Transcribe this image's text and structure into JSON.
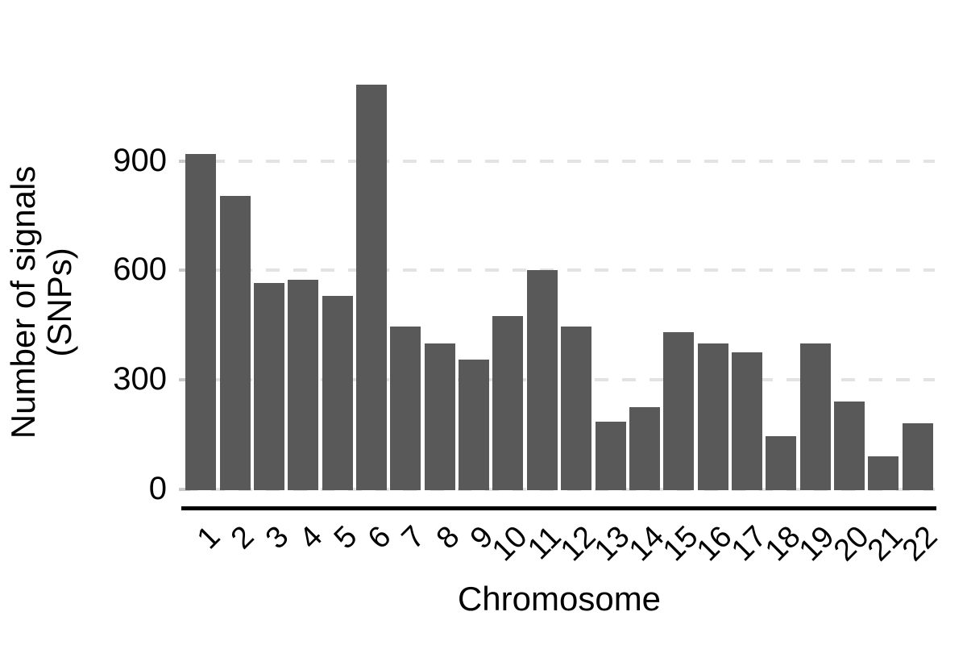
{
  "figure": {
    "xlabel": "Chromosome",
    "ylabel_lines": [
      "Number of signals",
      "(SNPs)"
    ]
  },
  "chart_data": {
    "type": "bar",
    "title": "",
    "xlabel": "Chromosome",
    "ylabel": "Number of signals (SNPs)",
    "categories": [
      "1",
      "2",
      "3",
      "4",
      "5",
      "6",
      "7",
      "8",
      "9",
      "10",
      "11",
      "12",
      "13",
      "14",
      "15",
      "16",
      "17",
      "18",
      "19",
      "20",
      "21",
      "22"
    ],
    "values": [
      920,
      805,
      565,
      575,
      530,
      1110,
      445,
      400,
      355,
      475,
      600,
      445,
      185,
      225,
      430,
      400,
      375,
      145,
      400,
      240,
      90,
      180
    ],
    "yticks": [
      0,
      300,
      600,
      900
    ],
    "ylim": [
      0,
      1150
    ],
    "grid": "horizontal dashed lines at y ticks",
    "legend": "none",
    "colors": {
      "bar": "#595959",
      "gridline": "#e3e3e3",
      "tick_mark": "#c9c9c9",
      "axis_line": "#000000",
      "text": "#000000"
    }
  }
}
